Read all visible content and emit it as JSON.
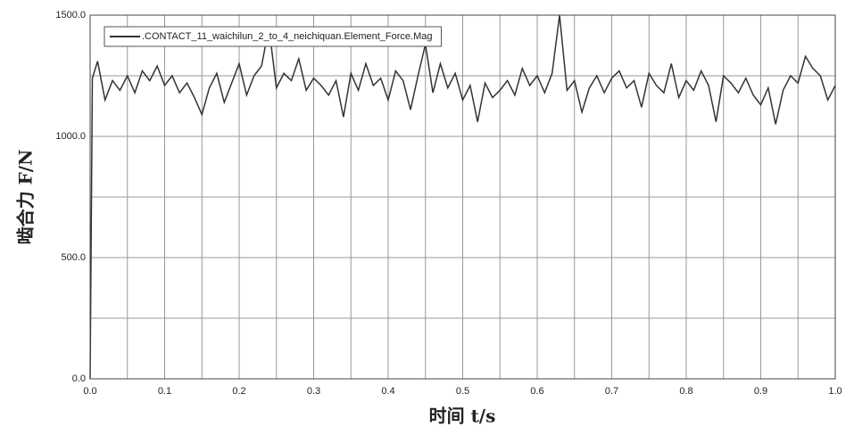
{
  "chart_data": {
    "type": "line",
    "x_label": "时间 t/s",
    "y_label": "啮合力 F/N",
    "xlim": [
      0,
      1
    ],
    "ylim": [
      0,
      1500
    ],
    "xticks": [
      {
        "value": 0,
        "label": "0.0"
      },
      {
        "value": 0.1,
        "label": "0.1"
      },
      {
        "value": 0.2,
        "label": "0.2"
      },
      {
        "value": 0.3,
        "label": "0.3"
      },
      {
        "value": 0.4,
        "label": "0.4"
      },
      {
        "value": 0.5,
        "label": "0.5"
      },
      {
        "value": 0.6,
        "label": "0.6"
      },
      {
        "value": 0.7,
        "label": "0.7"
      },
      {
        "value": 0.8,
        "label": "0.8"
      },
      {
        "value": 0.9,
        "label": "0.9"
      },
      {
        "value": 1,
        "label": "1.0"
      }
    ],
    "yticks": [
      {
        "value": 0,
        "label": "0.0"
      },
      {
        "value": 500,
        "label": "500.0"
      },
      {
        "value": 1000,
        "label": "1000.0"
      },
      {
        "value": 1500,
        "label": "1500.0"
      }
    ],
    "xgrid_minor": [
      0.05,
      0.15,
      0.25,
      0.35,
      0.45,
      0.55,
      0.65,
      0.75,
      0.85,
      0.95
    ],
    "ygrid_minor": [
      250,
      750,
      1250
    ],
    "grid": true,
    "legend": "upper left",
    "x": [
      0,
      0.003,
      0.01,
      0.02,
      0.03,
      0.04,
      0.05,
      0.06,
      0.07,
      0.08,
      0.09,
      0.1,
      0.11,
      0.12,
      0.13,
      0.14,
      0.15,
      0.16,
      0.17,
      0.18,
      0.19,
      0.2,
      0.21,
      0.22,
      0.23,
      0.24,
      0.25,
      0.26,
      0.27,
      0.28,
      0.29,
      0.3,
      0.31,
      0.32,
      0.33,
      0.34,
      0.35,
      0.36,
      0.37,
      0.38,
      0.39,
      0.4,
      0.41,
      0.42,
      0.43,
      0.44,
      0.45,
      0.46,
      0.47,
      0.48,
      0.49,
      0.5,
      0.51,
      0.52,
      0.53,
      0.54,
      0.55,
      0.56,
      0.57,
      0.58,
      0.59,
      0.6,
      0.61,
      0.62,
      0.63,
      0.64,
      0.65,
      0.66,
      0.67,
      0.68,
      0.69,
      0.7,
      0.71,
      0.72,
      0.73,
      0.74,
      0.75,
      0.76,
      0.77,
      0.78,
      0.79,
      0.8,
      0.81,
      0.82,
      0.83,
      0.84,
      0.85,
      0.86,
      0.87,
      0.88,
      0.89,
      0.9,
      0.91,
      0.92,
      0.93,
      0.94,
      0.95,
      0.96,
      0.97,
      0.98,
      0.99,
      1
    ],
    "series": [
      {
        "name": ".CONTACT_11_waichilun_2_to_4_neichiquan.Element_Force.Mag",
        "color": "#333333",
        "values": [
          0,
          1240,
          1310,
          1150,
          1230,
          1190,
          1250,
          1180,
          1270,
          1230,
          1290,
          1210,
          1250,
          1180,
          1220,
          1160,
          1090,
          1200,
          1260,
          1140,
          1220,
          1300,
          1170,
          1250,
          1290,
          1450,
          1200,
          1260,
          1230,
          1320,
          1190,
          1240,
          1210,
          1170,
          1230,
          1080,
          1260,
          1190,
          1300,
          1210,
          1240,
          1150,
          1270,
          1230,
          1110,
          1250,
          1380,
          1180,
          1300,
          1200,
          1260,
          1150,
          1210,
          1060,
          1220,
          1160,
          1190,
          1230,
          1170,
          1280,
          1210,
          1250,
          1180,
          1260,
          1500,
          1190,
          1230,
          1100,
          1200,
          1250,
          1180,
          1240,
          1270,
          1200,
          1230,
          1120,
          1260,
          1210,
          1180,
          1300,
          1160,
          1230,
          1190,
          1270,
          1210,
          1060,
          1250,
          1220,
          1180,
          1240,
          1170,
          1130,
          1200,
          1050,
          1190,
          1250,
          1220,
          1330,
          1280,
          1250,
          1150,
          1210
        ]
      }
    ]
  }
}
